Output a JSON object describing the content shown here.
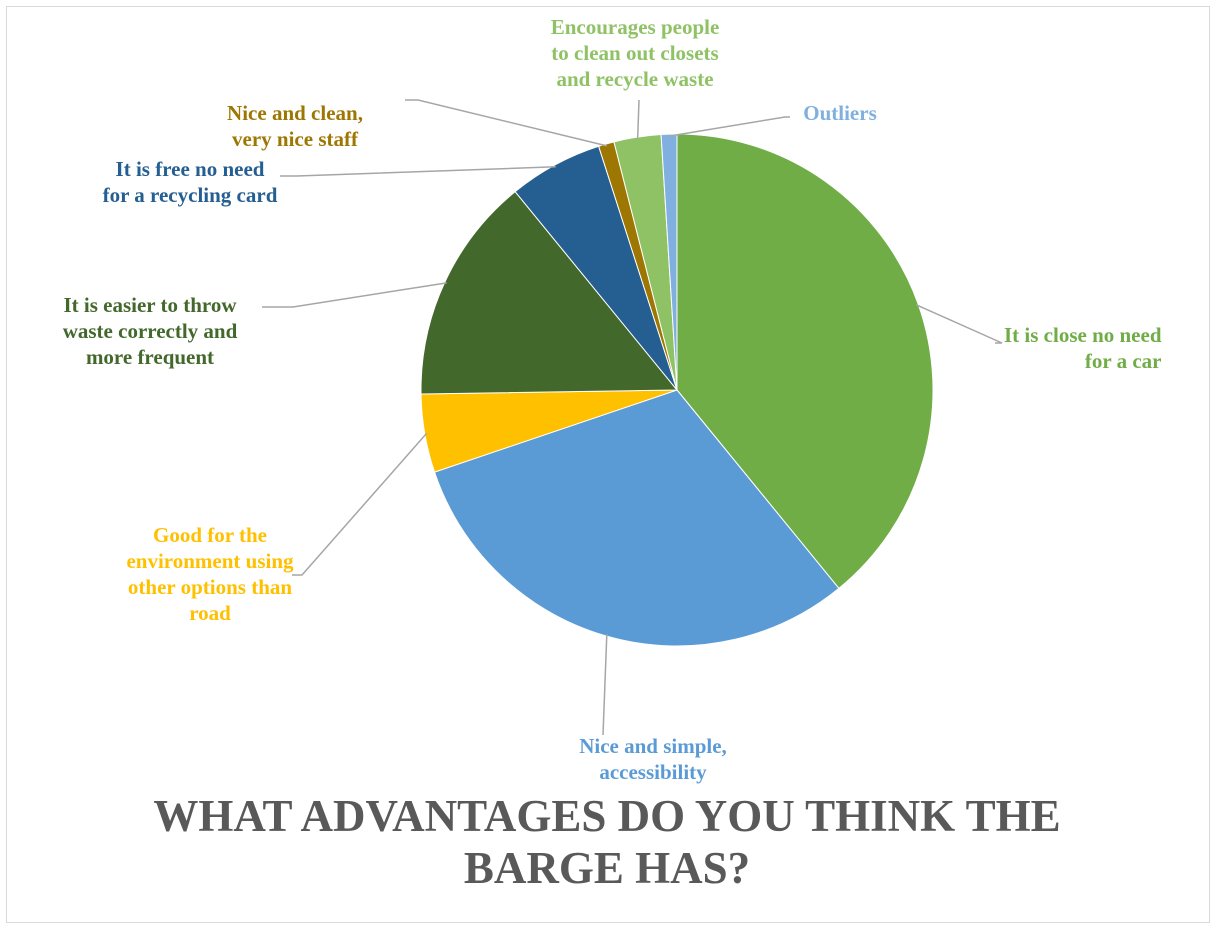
{
  "chart_data": {
    "type": "pie",
    "title": "WHAT ADVANTAGES DO YOU THINK THE\nBARGE HAS?",
    "slices": [
      {
        "label": "It is close no need\nfor a car",
        "value": 39.5,
        "color": "#70ad47"
      },
      {
        "label": "Nice and simple,\naccessibility",
        "value": 31.0,
        "color": "#5b9bd5"
      },
      {
        "label": "Good for the\nenvironment using\nother options than\nroad",
        "value": 5.0,
        "color": "#ffc000"
      },
      {
        "label": "It is easier to throw\nwaste correctly and\nmore frequent",
        "value": 14.5,
        "color": "#43682b"
      },
      {
        "label": "It is free no need\nfor a recycling card",
        "value": 6.0,
        "color": "#255e91"
      },
      {
        "label": "Nice and clean,\nvery nice staff",
        "value": 1.0,
        "color": "#9e7602"
      },
      {
        "label": "Encourages people\nto clean out closets\nand recycle waste",
        "value": 3.0,
        "color": "#8fc265"
      },
      {
        "label": "Outliers",
        "value": 1.0,
        "color": "#7fb0e0"
      }
    ],
    "data_labels": "category name",
    "legend": "none"
  }
}
